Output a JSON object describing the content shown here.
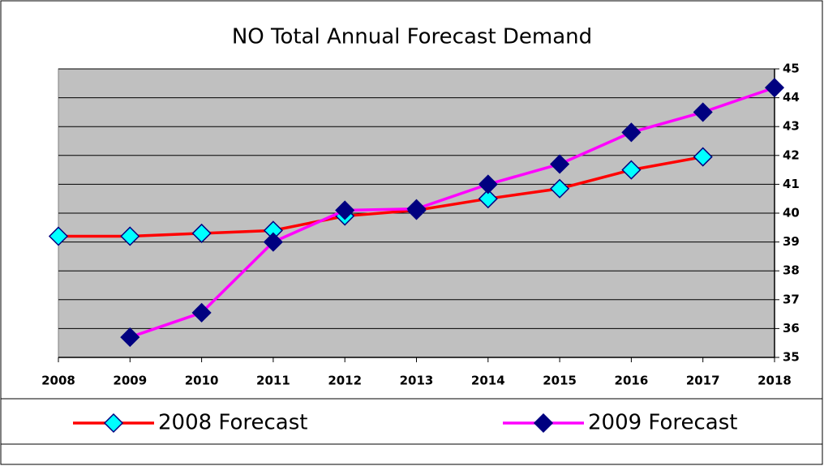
{
  "chart_data": {
    "type": "line",
    "title": "NO Total Annual Forecast Demand",
    "x": [
      2008,
      2009,
      2010,
      2011,
      2012,
      2013,
      2014,
      2015,
      2016,
      2017,
      2018
    ],
    "series": [
      {
        "name": "2008 Forecast",
        "color": "#ff0000",
        "marker_color": "#00ffff",
        "values": [
          39.2,
          39.2,
          39.3,
          39.4,
          39.9,
          40.1,
          40.5,
          40.85,
          41.5,
          41.95,
          null
        ]
      },
      {
        "name": "2009 Forecast",
        "color": "#ff00ff",
        "marker_color": "#000080",
        "values": [
          null,
          35.7,
          36.55,
          39.0,
          40.1,
          40.15,
          41.0,
          41.7,
          42.8,
          43.5,
          44.35
        ]
      }
    ],
    "xlim": [
      2008,
      2018
    ],
    "xticks": [
      2008,
      2009,
      2010,
      2011,
      2012,
      2013,
      2014,
      2015,
      2016,
      2017,
      2018
    ],
    "ylim": [
      35,
      45
    ],
    "yticks": [
      35,
      36,
      37,
      38,
      39,
      40,
      41,
      42,
      43,
      44,
      45
    ],
    "y_axis_side": "right",
    "grid": true,
    "plot_background": "#c0c0c0",
    "legend": "bottom"
  }
}
